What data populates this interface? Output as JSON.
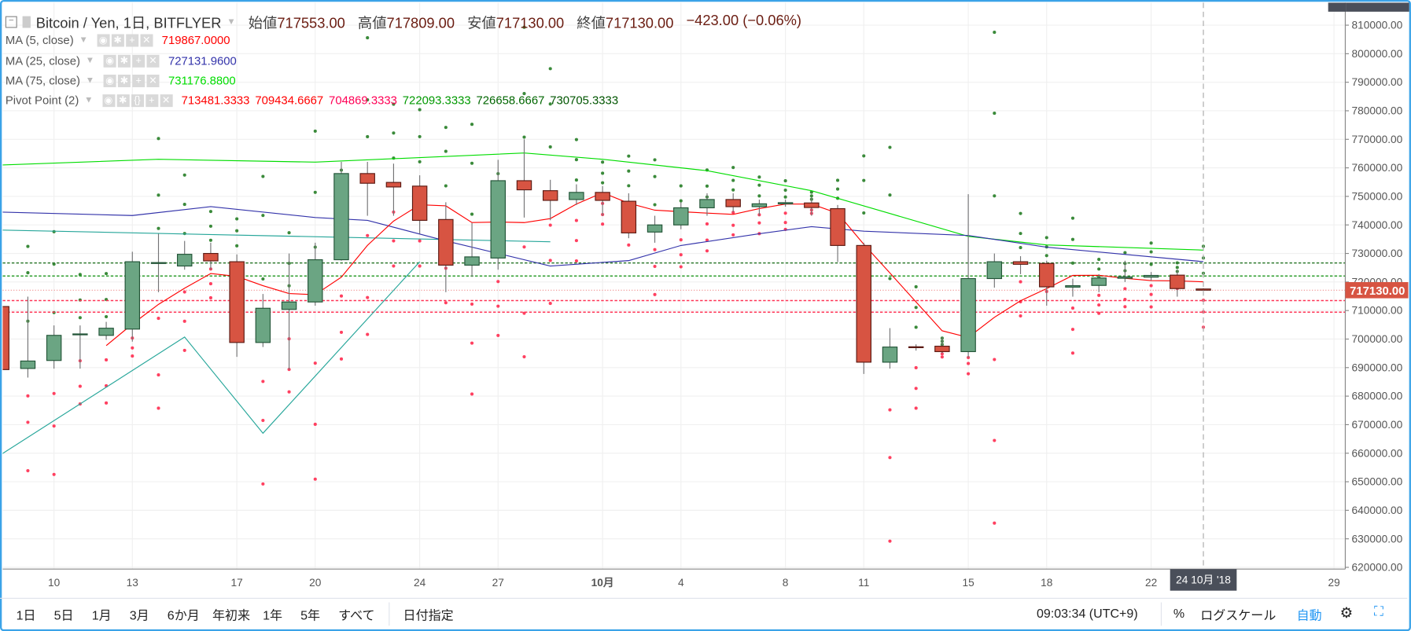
{
  "header": {
    "symbol": "Bitcoin / Yen, 1日, BITFLYER",
    "open_label": "始値",
    "open": "717553.00",
    "high_label": "高値",
    "high": "717809.00",
    "low_label": "安値",
    "low": "717130.00",
    "close_label": "終値",
    "close": "717130.00",
    "change": "−423.00 (−0.06%)"
  },
  "indicators": [
    {
      "name": "MA (5, close)",
      "values": [
        "719867.0000"
      ],
      "colors": [
        "#FF0000"
      ]
    },
    {
      "name": "MA (25, close)",
      "values": [
        "727131.9600"
      ],
      "colors": [
        "#3333AA"
      ]
    },
    {
      "name": "MA (75, close)",
      "values": [
        "731176.8800"
      ],
      "colors": [
        "#00DD00"
      ]
    },
    {
      "name": "Pivot Point (2)",
      "values": [
        "713481.3333",
        "709434.6667",
        "704869.3333",
        "722093.3333",
        "726658.6667",
        "730705.3333"
      ],
      "colors": [
        "#FF0000",
        "#FF0000",
        "#FF0055",
        "#009900",
        "#006600",
        "#005500"
      ]
    }
  ],
  "colors": {
    "up": "#6BA583",
    "up_border": "#225437",
    "down": "#D75442",
    "down_border": "#5B1A13",
    "wick": "#737375",
    "ma5": "#FF0000",
    "ma25": "#3333AA",
    "ma75": "#00DD00",
    "pivot_line": "#26A69A",
    "accent": "#2196F3",
    "last_price_bg": "#D75442"
  },
  "chart_data": {
    "type": "candlestick",
    "ylim": [
      620000,
      815000
    ],
    "y_ticks": [
      "810000.00",
      "800000.00",
      "790000.00",
      "780000.00",
      "770000.00",
      "760000.00",
      "750000.00",
      "740000.00",
      "730000.00",
      "720000.00",
      "710000.00",
      "700000.00",
      "690000.00",
      "680000.00",
      "670000.00",
      "660000.00",
      "650000.00",
      "640000.00",
      "630000.00",
      "620000.00"
    ],
    "x_labels": [
      {
        "d": "09-10",
        "t": "10"
      },
      {
        "d": "09-13",
        "t": "13"
      },
      {
        "d": "09-17",
        "t": "17"
      },
      {
        "d": "09-20",
        "t": "20"
      },
      {
        "d": "09-24",
        "t": "24"
      },
      {
        "d": "09-27",
        "t": "27"
      },
      {
        "d": "10-01",
        "t": "10月"
      },
      {
        "d": "10-04",
        "t": "4"
      },
      {
        "d": "10-08",
        "t": "8"
      },
      {
        "d": "10-11",
        "t": "11"
      },
      {
        "d": "10-15",
        "t": "15"
      },
      {
        "d": "10-18",
        "t": "18"
      },
      {
        "d": "10-22",
        "t": "22"
      },
      {
        "d": "10-29",
        "t": "29"
      }
    ],
    "cursor": {
      "date": "10-24",
      "label": "24 10月 '18"
    },
    "last_price": 717130,
    "last_price_label": "717130.00",
    "candles_ohlc": [
      [
        "09-08",
        711400,
        714000,
        687800,
        689300
      ],
      [
        "09-09",
        689700,
        714860,
        686500,
        692300
      ],
      [
        "09-10",
        692500,
        704770,
        689650,
        701300
      ],
      [
        "09-11",
        701600,
        704770,
        689650,
        701800
      ],
      [
        "09-12",
        701300,
        706030,
        699730,
        703800
      ],
      [
        "09-13",
        703500,
        730600,
        699100,
        727100
      ],
      [
        "09-14",
        726500,
        736910,
        716430,
        726800
      ],
      [
        "09-15",
        725600,
        734390,
        724310,
        729700
      ],
      [
        "09-16",
        730000,
        733760,
        724310,
        727400
      ],
      [
        "09-17",
        727100,
        729670,
        693750,
        698800
      ],
      [
        "09-18",
        698800,
        715800,
        697210,
        710800
      ],
      [
        "09-19",
        710400,
        729980,
        689330,
        713000
      ],
      [
        "09-20",
        713000,
        733760,
        711700,
        727800
      ],
      [
        "09-21",
        727800,
        762110,
        727460,
        758000
      ],
      [
        "09-22",
        758000,
        762110,
        743210,
        754600
      ],
      [
        "09-23",
        754900,
        761480,
        743210,
        753300
      ],
      [
        "09-24",
        753600,
        757390,
        736910,
        741600
      ],
      [
        "09-25",
        741900,
        747940,
        716430,
        725900
      ],
      [
        "09-26",
        725900,
        740690,
        721790,
        728800
      ],
      [
        "09-27",
        728400,
        762800,
        724310,
        755500
      ],
      [
        "09-28",
        755500,
        770000,
        742580,
        752300
      ],
      [
        "09-29",
        752000,
        755810,
        741640,
        748600
      ],
      [
        "09-30",
        748900,
        754230,
        746990,
        751400
      ],
      [
        "10-01",
        751400,
        753600,
        743210,
        748600
      ],
      [
        "10-02",
        748300,
        751080,
        735340,
        737200
      ],
      [
        "10-03",
        737500,
        743210,
        733760,
        740000
      ],
      [
        "10-04",
        740000,
        747940,
        738490,
        746000
      ],
      [
        "10-05",
        746000,
        751080,
        743210,
        748900
      ],
      [
        "10-06",
        748900,
        751080,
        744470,
        746400
      ],
      [
        "10-07",
        746400,
        748880,
        743210,
        747400
      ],
      [
        "10-08",
        747400,
        748880,
        746400,
        747800
      ],
      [
        "10-09",
        747700,
        749510,
        743210,
        746100
      ],
      [
        "10-10",
        745700,
        746990,
        727000,
        732800
      ],
      [
        "10-11",
        732800,
        733760,
        687760,
        691900
      ],
      [
        "10-12",
        691900,
        703830,
        689650,
        697200
      ],
      [
        "10-13",
        697300,
        698150,
        695950,
        697000
      ],
      [
        "10-14",
        697500,
        700680,
        695010,
        695600
      ],
      [
        "10-15",
        695600,
        750770,
        693430,
        721200
      ],
      [
        "10-16",
        721200,
        729980,
        718010,
        727100
      ],
      [
        "10-17",
        727100,
        729040,
        722740,
        726200
      ],
      [
        "10-18",
        726500,
        727460,
        711700,
        718300
      ],
      [
        "10-19",
        718200,
        721160,
        714860,
        718700
      ],
      [
        "10-20",
        718800,
        722740,
        716430,
        721400
      ],
      [
        "10-21",
        721300,
        727460,
        720000,
        721800
      ],
      [
        "10-22",
        721700,
        723500,
        720500,
        722300
      ],
      [
        "10-23",
        722400,
        724310,
        714860,
        717700
      ],
      [
        "10-24",
        717553,
        717809,
        717130,
        717130
      ]
    ],
    "ma25": [
      [
        "09-08",
        744500
      ],
      [
        "09-13",
        743300
      ],
      [
        "09-16",
        746400
      ],
      [
        "09-20",
        742600
      ],
      [
        "09-22",
        741600
      ],
      [
        "09-25",
        734400
      ],
      [
        "09-29",
        725600
      ],
      [
        "10-02",
        727500
      ],
      [
        "10-04",
        732800
      ],
      [
        "10-07",
        736900
      ],
      [
        "10-09",
        739400
      ],
      [
        "10-11",
        737800
      ],
      [
        "10-15",
        736300
      ],
      [
        "10-18",
        732200
      ],
      [
        "10-24",
        727130
      ]
    ],
    "ma75": [
      [
        "09-08",
        761000
      ],
      [
        "09-14",
        763000
      ],
      [
        "09-20",
        762000
      ],
      [
        "09-28",
        765200
      ],
      [
        "10-01",
        763000
      ],
      [
        "10-05",
        759000
      ],
      [
        "10-09",
        752000
      ],
      [
        "10-12",
        744000
      ],
      [
        "10-15",
        736000
      ],
      [
        "10-18",
        733000
      ],
      [
        "10-24",
        731180
      ]
    ],
    "pivot_zigzag": [
      [
        "09-08",
        659700
      ],
      [
        "09-15",
        700700
      ],
      [
        "09-18",
        667000
      ],
      [
        "09-24",
        727100
      ]
    ],
    "pivot_flat": [
      [
        "09-08",
        738200
      ],
      [
        "09-29",
        734100
      ]
    ],
    "pivot_levels": {
      "P": 717130,
      "S1": 713481.3333,
      "S2": 709434.6667,
      "S3": 704869.3333,
      "R1": 722093.3333,
      "R2": 726658.6667,
      "R3": 730705.3333
    }
  },
  "toolbar": {
    "ranges": [
      "1日",
      "5日",
      "1月",
      "3月",
      "6か月",
      "年初来",
      "1年",
      "5年",
      "すべて"
    ],
    "date_range": "日付指定",
    "clock": "09:03:34 (UTC+9)",
    "percent": "%",
    "log": "ログスケール",
    "auto": "自動"
  }
}
